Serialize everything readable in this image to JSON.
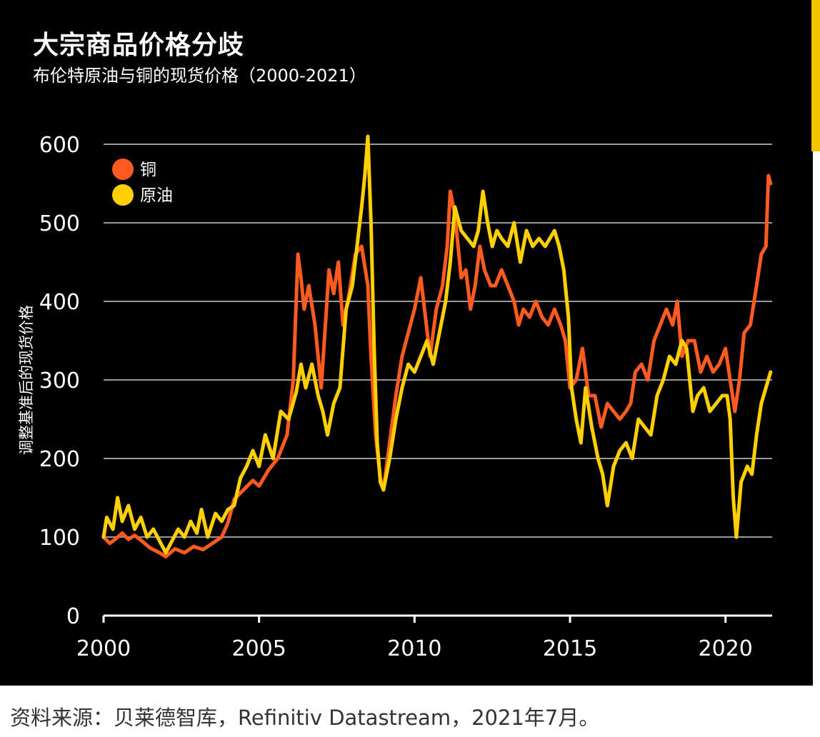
{
  "colors": {
    "background": "#000000",
    "accent": "#f5c400",
    "copper": "#ff5a1f",
    "oil": "#ffd000",
    "grid": "#9a9a9a"
  },
  "chart_data": {
    "type": "line",
    "title": "大宗商品价格分歧",
    "subtitle": "布伦特原油与铜的现货价格（2000-2021）",
    "xlabel": "",
    "ylabel": "调整基准后的现货价格",
    "xlim": [
      2000,
      2021.5
    ],
    "ylim": [
      0,
      620
    ],
    "xticks": [
      2000,
      2005,
      2010,
      2015,
      2020
    ],
    "xtick_labels": [
      "2000",
      "2005",
      "2010",
      "2015",
      "2020"
    ],
    "yticks": [
      0,
      100,
      200,
      300,
      400,
      500,
      600
    ],
    "ytick_labels": [
      "0",
      "100",
      "200",
      "300",
      "400",
      "500",
      "600"
    ],
    "grid": true,
    "legend_position": "top-left",
    "series": [
      {
        "name": "铜",
        "color": "#ff5a1f",
        "x": [
          2000.0,
          2000.2,
          2000.4,
          2000.6,
          2000.8,
          2001.0,
          2001.2,
          2001.5,
          2001.8,
          2002.0,
          2002.3,
          2002.6,
          2002.9,
          2003.2,
          2003.5,
          2003.8,
          2004.0,
          2004.2,
          2004.5,
          2004.8,
          2005.0,
          2005.3,
          2005.6,
          2005.9,
          2006.1,
          2006.25,
          2006.35,
          2006.45,
          2006.6,
          2006.8,
          2007.0,
          2007.1,
          2007.25,
          2007.4,
          2007.55,
          2007.7,
          2007.9,
          2008.1,
          2008.3,
          2008.5,
          2008.6,
          2008.75,
          2008.9,
          2009.0,
          2009.2,
          2009.4,
          2009.6,
          2009.8,
          2010.0,
          2010.2,
          2010.35,
          2010.5,
          2010.7,
          2010.9,
          2011.05,
          2011.15,
          2011.3,
          2011.5,
          2011.65,
          2011.8,
          2011.95,
          2012.1,
          2012.25,
          2012.45,
          2012.6,
          2012.8,
          2013.0,
          2013.2,
          2013.35,
          2013.5,
          2013.7,
          2013.9,
          2014.1,
          2014.3,
          2014.5,
          2014.7,
          2014.85,
          2015.0,
          2015.2,
          2015.4,
          2015.6,
          2015.8,
          2016.0,
          2016.2,
          2016.4,
          2016.6,
          2016.8,
          2016.95,
          2017.1,
          2017.3,
          2017.5,
          2017.7,
          2017.9,
          2018.1,
          2018.3,
          2018.45,
          2018.6,
          2018.8,
          2019.0,
          2019.2,
          2019.4,
          2019.6,
          2019.8,
          2020.0,
          2020.15,
          2020.3,
          2020.45,
          2020.6,
          2020.8,
          2021.0,
          2021.15,
          2021.3,
          2021.38,
          2021.45
        ],
        "values": [
          100,
          92,
          98,
          105,
          97,
          102,
          96,
          86,
          80,
          75,
          85,
          80,
          88,
          84,
          92,
          100,
          118,
          148,
          160,
          172,
          165,
          185,
          200,
          230,
          300,
          460,
          430,
          390,
          420,
          370,
          290,
          350,
          440,
          410,
          450,
          370,
          410,
          460,
          470,
          420,
          330,
          230,
          175,
          160,
          220,
          280,
          330,
          360,
          390,
          430,
          380,
          330,
          390,
          420,
          470,
          540,
          510,
          430,
          440,
          390,
          420,
          470,
          440,
          420,
          420,
          440,
          420,
          400,
          370,
          390,
          380,
          400,
          380,
          370,
          390,
          370,
          350,
          290,
          300,
          340,
          280,
          280,
          240,
          270,
          260,
          250,
          260,
          270,
          310,
          320,
          300,
          350,
          370,
          390,
          370,
          400,
          330,
          350,
          350,
          310,
          330,
          310,
          320,
          340,
          300,
          260,
          300,
          360,
          370,
          420,
          460,
          470,
          560,
          550
        ]
      },
      {
        "name": "原油",
        "color": "#ffd000",
        "x": [
          2000.0,
          2000.1,
          2000.3,
          2000.45,
          2000.6,
          2000.8,
          2001.0,
          2001.2,
          2001.4,
          2001.6,
          2001.8,
          2002.0,
          2002.2,
          2002.4,
          2002.6,
          2002.8,
          2003.0,
          2003.15,
          2003.35,
          2003.6,
          2003.8,
          2004.0,
          2004.2,
          2004.4,
          2004.6,
          2004.8,
          2005.0,
          2005.2,
          2005.45,
          2005.7,
          2005.95,
          2006.2,
          2006.35,
          2006.5,
          2006.7,
          2006.9,
          2007.05,
          2007.2,
          2007.4,
          2007.6,
          2007.8,
          2008.0,
          2008.15,
          2008.3,
          2008.4,
          2008.5,
          2008.6,
          2008.7,
          2008.8,
          2008.9,
          2009.0,
          2009.1,
          2009.2,
          2009.4,
          2009.6,
          2009.8,
          2010.0,
          2010.2,
          2010.4,
          2010.6,
          2010.8,
          2011.0,
          2011.15,
          2011.3,
          2011.5,
          2011.7,
          2011.9,
          2012.05,
          2012.2,
          2012.35,
          2012.5,
          2012.65,
          2012.8,
          2013.0,
          2013.2,
          2013.4,
          2013.6,
          2013.8,
          2014.0,
          2014.2,
          2014.35,
          2014.5,
          2014.65,
          2014.8,
          2014.95,
          2015.05,
          2015.2,
          2015.35,
          2015.5,
          2015.7,
          2015.9,
          2016.05,
          2016.2,
          2016.4,
          2016.6,
          2016.8,
          2017.0,
          2017.2,
          2017.4,
          2017.6,
          2017.8,
          2018.0,
          2018.2,
          2018.4,
          2018.6,
          2018.75,
          2018.95,
          2019.1,
          2019.3,
          2019.5,
          2019.7,
          2019.9,
          2020.05,
          2020.15,
          2020.25,
          2020.35,
          2020.5,
          2020.7,
          2020.85,
          2021.0,
          2021.15,
          2021.3,
          2021.45
        ],
        "values": [
          100,
          125,
          110,
          150,
          120,
          140,
          110,
          125,
          100,
          110,
          95,
          80,
          95,
          110,
          100,
          120,
          105,
          135,
          100,
          130,
          120,
          135,
          140,
          175,
          190,
          210,
          190,
          230,
          200,
          260,
          250,
          285,
          320,
          290,
          320,
          280,
          260,
          230,
          270,
          290,
          390,
          420,
          470,
          520,
          560,
          610,
          500,
          340,
          220,
          170,
          160,
          180,
          200,
          250,
          290,
          320,
          310,
          330,
          350,
          320,
          360,
          400,
          450,
          520,
          490,
          480,
          470,
          490,
          540,
          500,
          470,
          490,
          480,
          470,
          500,
          450,
          490,
          470,
          480,
          470,
          480,
          490,
          470,
          440,
          380,
          290,
          250,
          220,
          290,
          240,
          200,
          180,
          140,
          190,
          210,
          220,
          200,
          250,
          240,
          230,
          280,
          300,
          330,
          320,
          350,
          340,
          260,
          280,
          290,
          260,
          270,
          280,
          280,
          250,
          150,
          100,
          170,
          190,
          180,
          230,
          270,
          290,
          310
        ]
      }
    ]
  },
  "footer": {
    "source": "资料来源：贝莱德智库，Refinitiv Datastream，2021年7月。"
  }
}
